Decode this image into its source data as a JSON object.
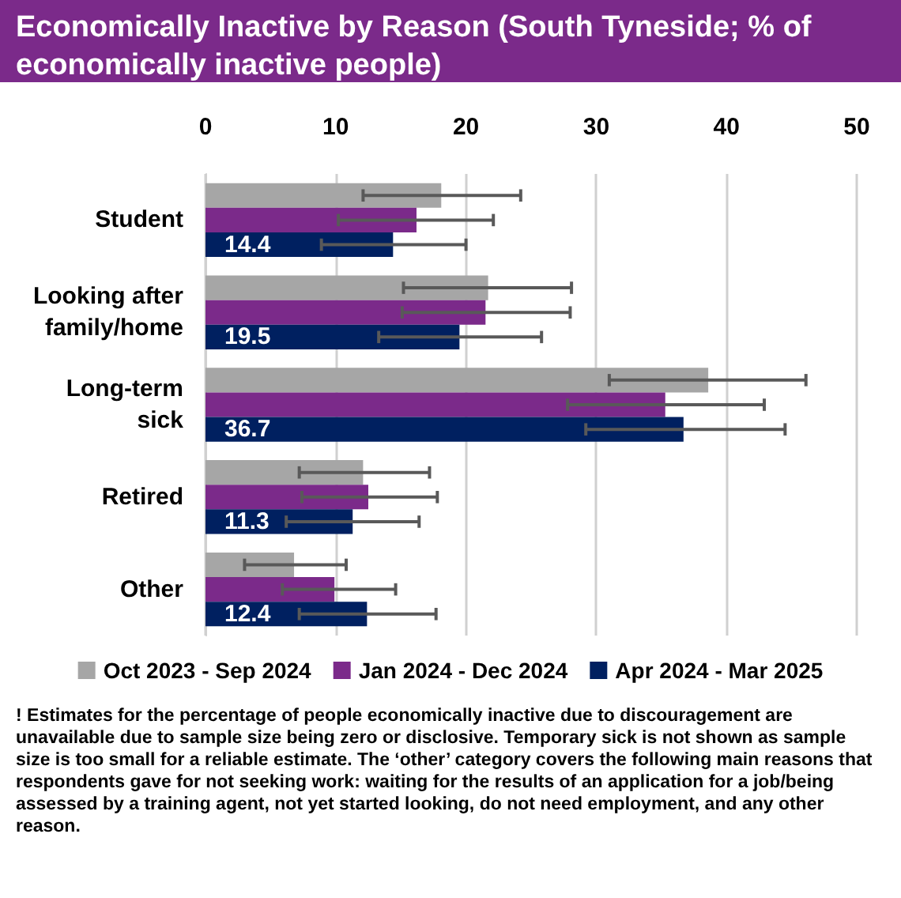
{
  "chart_data": {
    "type": "bar",
    "orientation": "horizontal",
    "title": "Economically Inactive by Reason (South Tyneside; % of economically inactive people)",
    "categories": [
      "Student",
      "Looking after family/home",
      "Long-term sick",
      "Retired",
      "Other"
    ],
    "series": [
      {
        "name": "Oct 2023 - Sep 2024",
        "color": "#a6a6a6",
        "values": [
          18.1,
          21.7,
          38.6,
          12.1,
          6.8
        ],
        "errors": [
          [
            12.1,
            24.2
          ],
          [
            15.2,
            28.1
          ],
          [
            31.0,
            46.1
          ],
          [
            7.2,
            17.2
          ],
          [
            3.0,
            10.8
          ]
        ]
      },
      {
        "name": "Jan 2024 - Dec 2024",
        "color": "#7b2a8a",
        "values": [
          16.2,
          21.5,
          35.3,
          12.5,
          9.9
        ],
        "errors": [
          [
            10.2,
            22.1
          ],
          [
            15.1,
            28.0
          ],
          [
            27.8,
            42.9
          ],
          [
            7.4,
            17.8
          ],
          [
            5.9,
            14.6
          ]
        ]
      },
      {
        "name": "Apr 2024 - Mar 2025",
        "color": "#002060",
        "values": [
          14.4,
          19.5,
          36.7,
          11.3,
          12.4
        ],
        "errors": [
          [
            8.9,
            20.0
          ],
          [
            13.3,
            25.8
          ],
          [
            29.2,
            44.5
          ],
          [
            6.2,
            16.4
          ],
          [
            7.2,
            17.7
          ]
        ],
        "value_labels": [
          "14.4",
          "19.5",
          "36.7",
          "11.3",
          "12.4"
        ]
      }
    ],
    "xlim": [
      0,
      50
    ],
    "xticks": [
      0,
      10,
      20,
      30,
      40,
      50
    ],
    "grid": "x",
    "legend": "bottom",
    "annotations": [
      "! Estimates for the percentage of people economically inactive due to discouragement are unavailable due to sample size being zero or disclosive. Temporary sick is not shown as sample size is too small for a reliable estimate. The ‘other’ category covers the following main reasons that respondents gave for not seeking work: waiting for the results of an application for a job/being assessed by a training agent, not yet started looking, do not need employment, and any other reason."
    ]
  }
}
